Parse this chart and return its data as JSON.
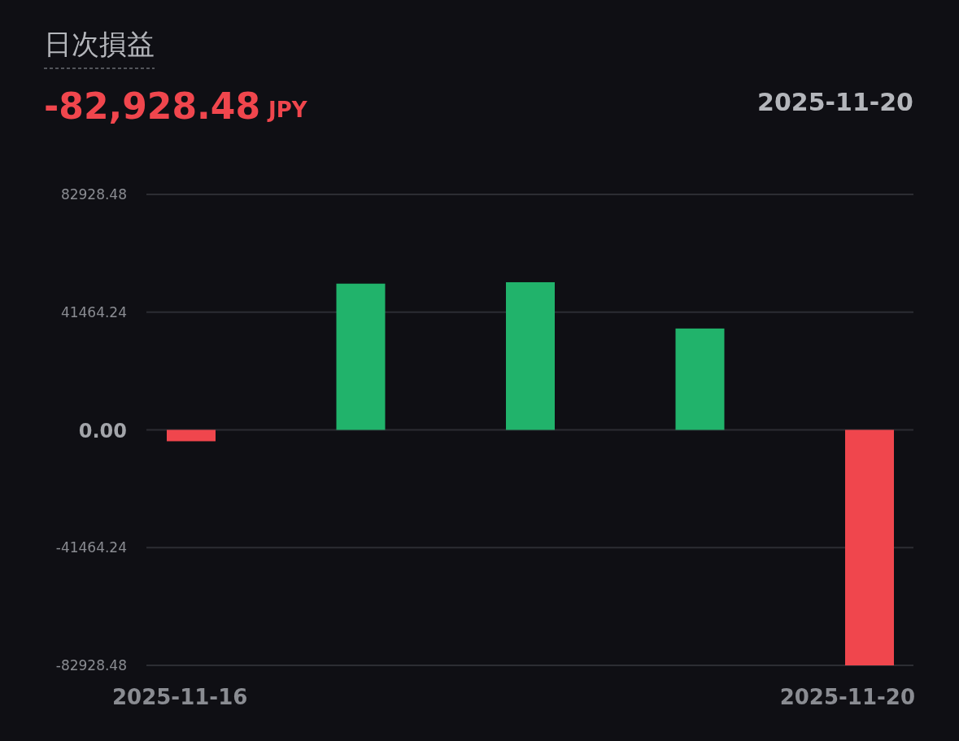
{
  "chart_data": {
    "type": "bar",
    "title": "日次損益",
    "subtitle": "-82,928.48",
    "annotations": [
      "JPY",
      "2025-11-20"
    ],
    "categories": [
      "2025-11-16",
      null,
      null,
      null,
      "2025-11-20"
    ],
    "values": [
      -4000,
      51500,
      52000,
      35700,
      -82928.48
    ],
    "colors": [
      "#f0464d",
      "#21b36b",
      "#21b36b",
      "#21b36b",
      "#f0464d"
    ],
    "ylim": [
      -82928.48,
      82928.48
    ],
    "yticks": [
      82928.48,
      41464.24,
      {
        "value": 0,
        "label": "0.00"
      },
      -41464.24,
      -82928.48
    ],
    "grid": "y"
  }
}
